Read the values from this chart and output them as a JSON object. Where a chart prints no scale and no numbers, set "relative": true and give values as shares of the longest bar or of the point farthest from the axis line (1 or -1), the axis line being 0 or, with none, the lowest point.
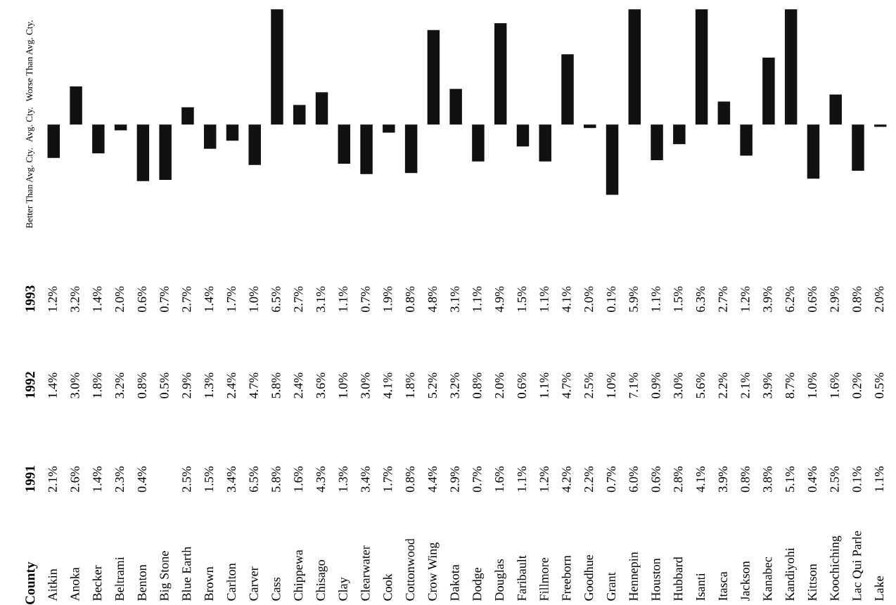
{
  "chart_data": [
    {
      "type": "bar",
      "relative": true,
      "color": "#111111",
      "categories": [
        "Aitkin",
        "Anoka",
        "Becker",
        "Beltrami",
        "Benton",
        "Big Stone",
        "Blue Earth",
        "Brown",
        "Carlton",
        "Carver",
        "Cass",
        "Chippewa",
        "Chisago",
        "Clay",
        "Clearwater",
        "Cook",
        "Cottonwood",
        "Crow Wing",
        "Dakota",
        "Dodge",
        "Douglas",
        "Faribault",
        "Fillmore",
        "Freeborn",
        "Goodhue",
        "Grant",
        "Hennepin",
        "Houston",
        "Hubbard",
        "Isanti",
        "Itasca",
        "Jackson",
        "Kanabec",
        "Kandiyohi",
        "Kittson",
        "Koochiching",
        "Lac Qui Parle",
        "Lake"
      ],
      "values": [
        -0.29,
        0.33,
        -0.25,
        -0.05,
        -0.49,
        -0.48,
        0.15,
        -0.21,
        -0.14,
        -0.35,
        1.0,
        0.17,
        0.28,
        -0.34,
        -0.43,
        -0.07,
        -0.42,
        0.82,
        0.31,
        -0.32,
        0.88,
        -0.19,
        -0.32,
        0.61,
        -0.03,
        -0.61,
        1.0,
        -0.31,
        -0.17,
        1.0,
        0.2,
        -0.27,
        0.58,
        1.0,
        -0.47,
        0.26,
        -0.4,
        -0.02
      ],
      "annotations": [
        "Worse Than Avg. Cty.",
        "Avg. Cty.",
        "Better Than Avg. Cty.",
        "County"
      ]
    },
    {
      "type": "other",
      "annotations": [
        "1991",
        "2.1%",
        "2.6%",
        "1.4%",
        "2.3%",
        "0.4%",
        null,
        "2.5%",
        "1.5%",
        "3.4%",
        "6.5%",
        "5.8%",
        "1.6%",
        "4.3%",
        "1.3%",
        "3.4%",
        "1.7%",
        "0.8%",
        "4.4%",
        "2.9%",
        "0.7%",
        "1.6%",
        "1.1%",
        "1.2%",
        "4.2%",
        "2.2%",
        "0.7%",
        "6.0%",
        "0.6%",
        "2.8%",
        "4.1%",
        "3.9%",
        "0.8%",
        "3.8%",
        "5.1%",
        "0.4%",
        "2.5%",
        "0.1%",
        "1.1%",
        "1992",
        "1.4%",
        "3.0%",
        "1.8%",
        "3.2%",
        "0.8%",
        "0.5%",
        "2.9%",
        "1.3%",
        "2.4%",
        "4.7%",
        "5.8%",
        "2.4%",
        "3.6%",
        "1.0%",
        "3.0%",
        "4.1%",
        "1.8%",
        "5.2%",
        "3.2%",
        "0.8%",
        "2.0%",
        "0.6%",
        "1.1%",
        "4.7%",
        "2.5%",
        "1.0%",
        "7.1%",
        "0.9%",
        "3.0%",
        "5.6%",
        "2.2%",
        "2.1%",
        "3.9%",
        "8.7%",
        "1.0%",
        "1.6%",
        "0.2%",
        "0.5%",
        "1993",
        "1.2%",
        "3.2%",
        "1.4%",
        "2.0%",
        "0.6%",
        "0.7%",
        "2.7%",
        "1.4%",
        "1.7%",
        "1.0%",
        "6.5%",
        "2.7%",
        "3.1%",
        "1.1%",
        "0.7%",
        "1.9%",
        "0.8%",
        "4.8%",
        "3.1%",
        "1.1%",
        "4.9%",
        "1.5%",
        "1.1%",
        "4.1%",
        "2.0%",
        "0.1%",
        "5.9%",
        "1.1%",
        "1.5%",
        "6.3%",
        "2.7%",
        "1.2%",
        "3.9%",
        "6.2%",
        "0.6%",
        "2.9%",
        "0.8%",
        "2.0%"
      ]
    }
  ]
}
